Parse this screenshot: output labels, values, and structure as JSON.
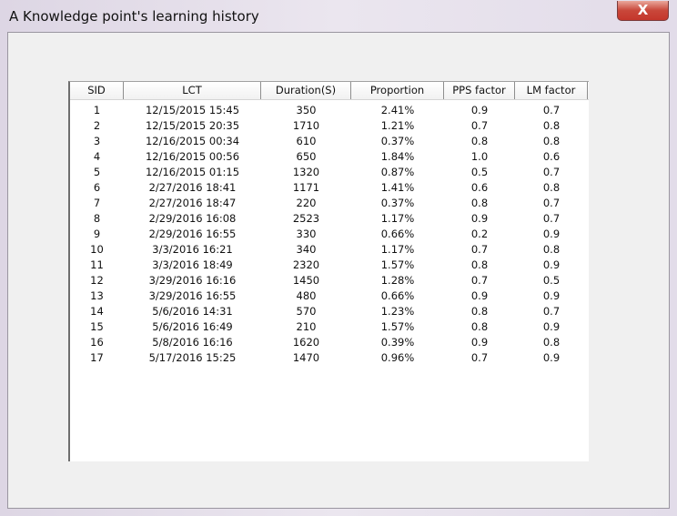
{
  "window": {
    "title": "A Knowledge point's learning history",
    "close_label": "X"
  },
  "table": {
    "columns": [
      "SID",
      "LCT",
      "Duration(S)",
      "Proportion",
      "PPS factor",
      "LM factor"
    ],
    "rows": [
      [
        "1",
        "12/15/2015 15:45",
        "350",
        "2.41%",
        "0.9",
        "0.7"
      ],
      [
        "2",
        "12/15/2015 20:35",
        "1710",
        "1.21%",
        "0.7",
        "0.8"
      ],
      [
        "3",
        "12/16/2015 00:34",
        "610",
        "0.37%",
        "0.8",
        "0.8"
      ],
      [
        "4",
        "12/16/2015 00:56",
        "650",
        "1.84%",
        "1.0",
        "0.6"
      ],
      [
        "5",
        "12/16/2015 01:15",
        "1320",
        "0.87%",
        "0.5",
        "0.7"
      ],
      [
        "6",
        "2/27/2016 18:41",
        "1171",
        "1.41%",
        "0.6",
        "0.8"
      ],
      [
        "7",
        "2/27/2016 18:47",
        "220",
        "0.37%",
        "0.8",
        "0.7"
      ],
      [
        "8",
        "2/29/2016 16:08",
        "2523",
        "1.17%",
        "0.9",
        "0.7"
      ],
      [
        "9",
        "2/29/2016 16:55",
        "330",
        "0.66%",
        "0.2",
        "0.9"
      ],
      [
        "10",
        "3/3/2016 16:21",
        "340",
        "1.17%",
        "0.7",
        "0.8"
      ],
      [
        "11",
        "3/3/2016 18:49",
        "2320",
        "1.57%",
        "0.8",
        "0.9"
      ],
      [
        "12",
        "3/29/2016 16:16",
        "1450",
        "1.28%",
        "0.7",
        "0.5"
      ],
      [
        "13",
        "3/29/2016 16:55",
        "480",
        "0.66%",
        "0.9",
        "0.9"
      ],
      [
        "14",
        "5/6/2016 14:31",
        "570",
        "1.23%",
        "0.8",
        "0.7"
      ],
      [
        "15",
        "5/6/2016 16:49",
        "210",
        "1.57%",
        "0.8",
        "0.9"
      ],
      [
        "16",
        "5/8/2016 16:16",
        "1620",
        "0.39%",
        "0.9",
        "0.8"
      ],
      [
        "17",
        "5/17/2016 15:25",
        "1470",
        "0.96%",
        "0.7",
        "0.9"
      ]
    ]
  }
}
